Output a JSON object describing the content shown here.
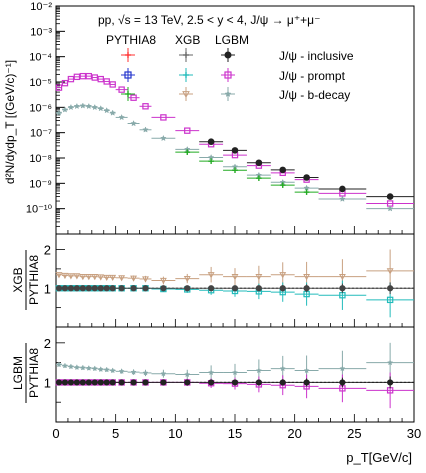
{
  "chart_data": [
    {
      "type": "scatter",
      "title": "pp, √s = 13 TeV, 2.5 < y < 4, J/ψ → μ⁺+μ⁻",
      "ylabel": "d²N/dydp_T [(GeV/c)⁻¹]",
      "log_y": true,
      "xlim": [
        0,
        30
      ],
      "ylim": [
        1e-11,
        0.01
      ],
      "y_tick_labels": [
        "10⁻²",
        "10⁻³",
        "10⁻⁴",
        "10⁻⁵",
        "10⁻⁶",
        "10⁻⁷",
        "10⁻⁸",
        "10⁻⁹",
        "10⁻¹⁰"
      ],
      "legend": {
        "column_headers": [
          "PYTHIA8",
          "XGB",
          "LGBM"
        ],
        "row_labels": [
          "J/ψ - inclusive",
          "J/ψ - prompt",
          "J/ψ - b-decay"
        ],
        "colors": [
          [
            "#ff3333",
            "#666666",
            "#222222"
          ],
          [
            "#2233cc",
            "#22bbbb",
            "#cc33cc"
          ],
          [
            "#22aa22",
            "#c8a080",
            "#88aaaa"
          ]
        ]
      },
      "x": [
        0.25,
        0.75,
        1.25,
        1.75,
        2.25,
        2.75,
        3.25,
        3.75,
        4.25,
        4.75,
        5.5,
        6.5,
        7.5,
        9,
        11,
        13,
        15,
        17,
        19,
        21,
        24,
        28
      ],
      "x_halfwidth": [
        0.25,
        0.25,
        0.25,
        0.25,
        0.25,
        0.25,
        0.25,
        0.25,
        0.25,
        0.25,
        0.5,
        0.5,
        0.5,
        1,
        1,
        1,
        1,
        1,
        1,
        1,
        2,
        2
      ],
      "series": [
        {
          "name": "J/ψ - inclusive",
          "color": "#cc33cc",
          "values": [
            6e-06,
            9e-06,
            1.3e-05,
            1.6e-05,
            1.7e-05,
            1.7e-05,
            1.5e-05,
            1.3e-05,
            1.05e-05,
            8e-06,
            5e-06,
            2.4e-06,
            1.1e-06,
            4e-07,
            1.2e-07,
            3.5e-08,
            1.3e-08,
            5e-09,
            2.6e-09,
            1.4e-09,
            4e-10,
            1.6e-10
          ]
        },
        {
          "name": "J/ψ - b-decay",
          "color": "#88aaaa",
          "values": [
            6e-07,
            8e-07,
            1e-06,
            1.1e-06,
            1.15e-06,
            1.1e-06,
            1e-06,
            9e-07,
            7.5e-07,
            6e-07,
            4e-07,
            2.3e-07,
            1.3e-07,
            6e-08,
            2.2e-08,
            1.05e-08,
            4.5e-09,
            2.1e-09,
            1.1e-09,
            6.5e-10,
            2.4e-10,
            1e-10
          ]
        },
        {
          "name": "LGBM inclusive",
          "color": "#222222",
          "values": [
            null,
            null,
            null,
            null,
            null,
            null,
            null,
            null,
            null,
            null,
            null,
            null,
            null,
            null,
            null,
            4.4e-08,
            2e-08,
            6.5e-09,
            3.4e-09,
            1.7e-09,
            6e-10,
            3e-10
          ]
        },
        {
          "name": "PYTHIA8 b-decay",
          "color": "#22aa22",
          "values": [
            null,
            null,
            null,
            null,
            null,
            null,
            null,
            null,
            null,
            null,
            null,
            null,
            null,
            null,
            1.7e-08,
            7.5e-09,
            3.3e-09,
            1.6e-09,
            8.5e-10,
            4.5e-10,
            null,
            null
          ]
        }
      ]
    },
    {
      "type": "scatter",
      "ylabel_numerator": "XGB",
      "ylabel_denominator": "PYTHIA8",
      "xlim": [
        0,
        30
      ],
      "ylim": [
        0,
        2.4
      ],
      "y_tick_labels": [
        "1",
        "2"
      ],
      "reference_line": 1,
      "x": [
        0.25,
        0.75,
        1.25,
        1.75,
        2.25,
        2.75,
        3.25,
        3.75,
        4.25,
        4.75,
        5.5,
        6.5,
        7.5,
        9,
        11,
        13,
        15,
        17,
        19,
        21,
        24,
        28
      ],
      "series": [
        {
          "name": "XGB/PYTHIA8 b-decay",
          "color": "#c8a080",
          "values": [
            1.35,
            1.33,
            1.32,
            1.32,
            1.3,
            1.3,
            1.3,
            1.29,
            1.28,
            1.28,
            1.27,
            1.26,
            1.24,
            1.2,
            1.25,
            1.35,
            1.3,
            1.3,
            1.35,
            1.3,
            1.3,
            1.45
          ],
          "errors": [
            0.05,
            0.05,
            0.05,
            0.05,
            0.05,
            0.05,
            0.05,
            0.05,
            0.05,
            0.05,
            0.06,
            0.07,
            0.08,
            0.1,
            0.12,
            0.2,
            0.22,
            0.28,
            0.32,
            0.38,
            0.45,
            0.55
          ]
        },
        {
          "name": "XGB/PYTHIA8 prompt",
          "color": "#22bbbb",
          "values": [
            1,
            1,
            1,
            1,
            1,
            1,
            1,
            1,
            1,
            1,
            1,
            1,
            1,
            0.98,
            0.97,
            0.95,
            0.93,
            0.92,
            0.9,
            0.85,
            0.82,
            0.7
          ],
          "errors": [
            0.03,
            0.03,
            0.03,
            0.03,
            0.03,
            0.03,
            0.03,
            0.03,
            0.03,
            0.03,
            0.04,
            0.05,
            0.05,
            0.07,
            0.09,
            0.12,
            0.15,
            0.2,
            0.25,
            0.3,
            0.38,
            0.45
          ]
        },
        {
          "name": "XGB/PYTHIA8 inclusive",
          "color": "#444444",
          "values": [
            1,
            1,
            1,
            1,
            1,
            1,
            1,
            1,
            1,
            1,
            1,
            1,
            1,
            1,
            1,
            1,
            1,
            1,
            1,
            1,
            1,
            1
          ],
          "errors": [
            0.02,
            0.02,
            0.02,
            0.02,
            0.02,
            0.02,
            0.02,
            0.02,
            0.02,
            0.02,
            0.02,
            0.02,
            0.03,
            0.03,
            0.04,
            0.05,
            0.06,
            0.07,
            0.08,
            0.1,
            0.12,
            0.15
          ]
        }
      ]
    },
    {
      "type": "scatter",
      "ylabel_numerator": "LGBM",
      "ylabel_denominator": "PYTHIA8",
      "xlabel": "p_T[GeV/c]",
      "xlim": [
        0,
        30
      ],
      "ylim": [
        0,
        2.4
      ],
      "x_tick_labels": [
        "0",
        "5",
        "10",
        "15",
        "20",
        "25",
        "30"
      ],
      "y_tick_labels": [
        "1",
        "2"
      ],
      "reference_line": 1,
      "x": [
        0.25,
        0.75,
        1.25,
        1.75,
        2.25,
        2.75,
        3.25,
        3.75,
        4.25,
        4.75,
        5.5,
        6.5,
        7.5,
        9,
        11,
        13,
        15,
        17,
        19,
        21,
        24,
        28
      ],
      "series": [
        {
          "name": "LGBM/PYTHIA8 b-decay",
          "color": "#88aaaa",
          "values": [
            1.45,
            1.42,
            1.4,
            1.38,
            1.37,
            1.36,
            1.35,
            1.33,
            1.32,
            1.3,
            1.28,
            1.26,
            1.24,
            1.22,
            1.2,
            1.25,
            1.25,
            1.3,
            1.35,
            1.3,
            1.35,
            1.5
          ],
          "errors": [
            0.05,
            0.05,
            0.05,
            0.05,
            0.05,
            0.05,
            0.05,
            0.05,
            0.05,
            0.05,
            0.06,
            0.07,
            0.08,
            0.1,
            0.12,
            0.18,
            0.22,
            0.28,
            0.32,
            0.38,
            0.45,
            0.5
          ]
        },
        {
          "name": "LGBM/PYTHIA8 prompt",
          "color": "#cc33cc",
          "values": [
            1,
            1,
            1,
            1,
            1,
            1,
            1,
            1,
            1,
            1,
            1,
            1,
            1,
            1,
            1,
            0.98,
            0.97,
            0.95,
            0.93,
            0.9,
            0.85,
            0.8
          ],
          "errors": [
            0.03,
            0.03,
            0.03,
            0.03,
            0.03,
            0.03,
            0.03,
            0.03,
            0.03,
            0.03,
            0.04,
            0.05,
            0.05,
            0.07,
            0.09,
            0.12,
            0.15,
            0.2,
            0.25,
            0.3,
            0.35,
            0.45
          ]
        },
        {
          "name": "LGBM/PYTHIA8 inclusive",
          "color": "#222222",
          "values": [
            1,
            1,
            1,
            1,
            1,
            1,
            1,
            1,
            1,
            1,
            1,
            1,
            1,
            1,
            1,
            1,
            1,
            1,
            1,
            1,
            1,
            1
          ],
          "errors": [
            0.02,
            0.02,
            0.02,
            0.02,
            0.02,
            0.02,
            0.02,
            0.02,
            0.02,
            0.02,
            0.02,
            0.02,
            0.03,
            0.03,
            0.04,
            0.05,
            0.06,
            0.07,
            0.08,
            0.1,
            0.12,
            0.15
          ]
        }
      ]
    }
  ]
}
